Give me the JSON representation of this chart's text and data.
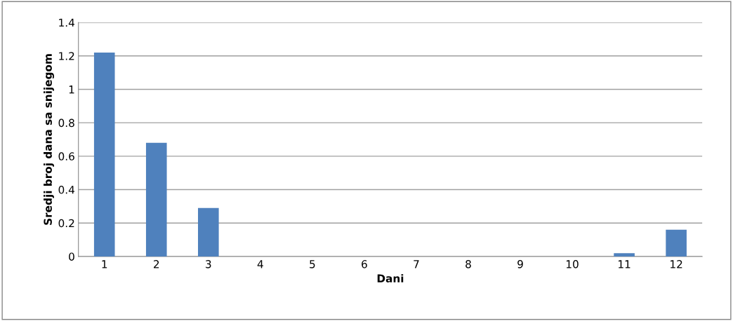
{
  "chart_data": {
    "type": "bar",
    "xlabel": "Dani",
    "ylabel": "Sredji broj dana sa snijegom",
    "categories": [
      "1",
      "2",
      "3",
      "4",
      "5",
      "6",
      "7",
      "8",
      "9",
      "10",
      "11",
      "12"
    ],
    "values": [
      1.22,
      0.68,
      0.29,
      0,
      0,
      0,
      0,
      0,
      0,
      0,
      0.02,
      0.16
    ],
    "color": "#4f81bd",
    "ylim": [
      0,
      1.4
    ],
    "yticks": [
      0,
      0.2,
      0.4,
      0.6,
      0.8,
      1,
      1.2,
      1.4
    ],
    "grid": "y",
    "legend": false
  }
}
